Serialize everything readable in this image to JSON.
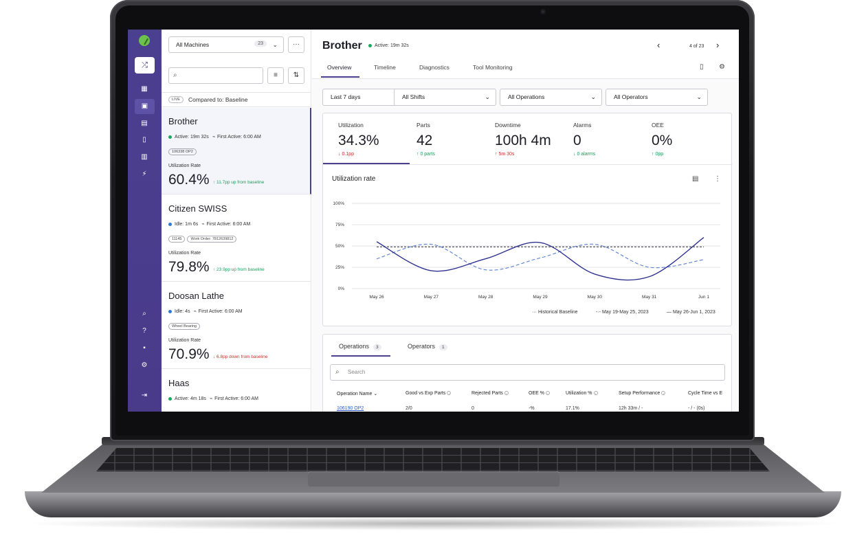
{
  "sidebar_list": {
    "machine_filter": "All Machines",
    "machine_count": "23",
    "more_label": "···",
    "live_label": "LIVE",
    "compared_label": "Compared to: Baseline",
    "machines": [
      {
        "name": "Brother",
        "status": "Active: 19m 32s",
        "first_active": "First Active: 6:00 AM",
        "tags": [
          "106338 OP2"
        ],
        "util_label": "Utilization Rate",
        "util_value": "60.4%",
        "delta": "↑ 11.7pp up from baseline"
      },
      {
        "name": "Citizen SWISS",
        "status": "Idle: 1m 6s",
        "first_active": "First Active: 6:00 AM",
        "tags": [
          "11145",
          "Work Order: 7812639812"
        ],
        "util_label": "Utilization Rate",
        "util_value": "79.8%",
        "delta": "↑ 23.9pp up from baseline"
      },
      {
        "name": "Doosan Lathe",
        "status": "Idle: 4s",
        "first_active": "First Active: 6:00 AM",
        "tags": [
          "Wheel Bearing"
        ],
        "util_label": "Utilization Rate",
        "util_value": "70.9%",
        "delta": "↓ 6.8pp down from baseline"
      },
      {
        "name": "Haas",
        "status": "Active: 4m 18s",
        "first_active": "First Active: 6:00 AM",
        "tags": [],
        "util_label": "",
        "util_value": "",
        "delta": ""
      }
    ]
  },
  "header": {
    "title": "Brother",
    "status": "Active: 19m 32s",
    "pager": "4 of 23",
    "tabs": [
      "Overview",
      "Timeline",
      "Diagnostics",
      "Tool Monitoring"
    ]
  },
  "filters": [
    "Last 7 days",
    "All Shifts",
    "All Operations",
    "All Operators"
  ],
  "kpis": [
    {
      "label": "Utilization",
      "value": "34.3%",
      "delta": "↓ 0.1pp"
    },
    {
      "label": "Parts",
      "value": "42",
      "delta": "↑ 0 parts"
    },
    {
      "label": "Downtime",
      "value": "100h 4m",
      "delta": "↑ 5m 30s"
    },
    {
      "label": "Alarms",
      "value": "0",
      "delta": "↓ 0 alarms"
    },
    {
      "label": "OEE",
      "value": "0%",
      "delta": "↑ 0pp"
    }
  ],
  "chart_data": {
    "type": "line",
    "title": "Utilization rate",
    "categories": [
      "May 26",
      "May 27",
      "May 28",
      "May 29",
      "May 30",
      "May 31",
      "Jun 1"
    ],
    "yticks": [
      "100%",
      "75%",
      "50%",
      "25%",
      "0%"
    ],
    "ylim": [
      0,
      100
    ],
    "series": [
      {
        "name": "Historical Baseline",
        "values": [
          49,
          49,
          49,
          49,
          49,
          49,
          49
        ],
        "style": "dotted"
      },
      {
        "name": "May 19-May 25, 2023",
        "values": [
          35,
          52,
          22,
          36,
          52,
          25,
          34
        ],
        "style": "dashed"
      },
      {
        "name": "May 26-Jun 1, 2023",
        "values": [
          55,
          21,
          35,
          54,
          17,
          14,
          60
        ],
        "style": "solid"
      }
    ],
    "colors": {
      "line": "#2e318f",
      "dashed": "#5b7fd0",
      "baseline": "#2b2b35"
    }
  },
  "table": {
    "tabs": [
      {
        "label": "Operations",
        "count": "3"
      },
      {
        "label": "Operators",
        "count": "1"
      }
    ],
    "search_placeholder": "Search",
    "headers": [
      "Operation Name",
      "Good vs Exp Parts",
      "Rejected Parts",
      "OEE %",
      "Utilization %",
      "Setup Performance",
      "Cycle Time vs E"
    ],
    "rows": [
      [
        "106190 OP2",
        "2/0",
        "0",
        "-%",
        "17.1%",
        "12h 33m / -",
        "- / - (0s)"
      ]
    ]
  },
  "accent": "#4b3f8f"
}
